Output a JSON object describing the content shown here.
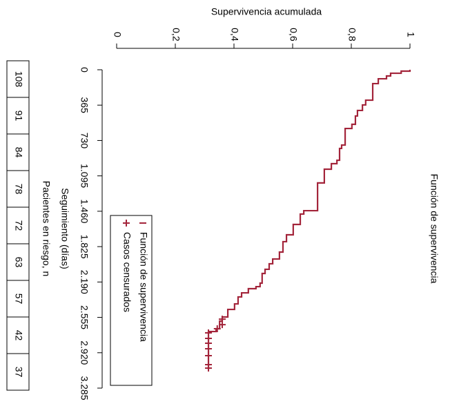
{
  "chart_data": {
    "type": "step",
    "title": "Función de supervivencia",
    "xlabel": "Seguimiento (días)",
    "ylabel": "Supervivencia acumulada",
    "risk_label": "Pacientes en riesgo, n",
    "xlim": [
      0,
      3285
    ],
    "xticks": [
      0,
      365,
      730,
      {
        "value": 1095,
        "label": "1.095"
      },
      {
        "value": 1460,
        "label": "1.460"
      },
      {
        "value": 1825,
        "label": "1.825"
      },
      {
        "value": 2190,
        "label": "2.190"
      },
      {
        "value": 2555,
        "label": "2.555"
      },
      {
        "value": 2920,
        "label": "2.920"
      },
      {
        "value": 3285,
        "label": "3.285"
      }
    ],
    "ylim": [
      0,
      1
    ],
    "yticks": [
      0,
      {
        "value": 0.2,
        "label": "0,2"
      },
      {
        "value": 0.4,
        "label": "0,4"
      },
      {
        "value": 0.6,
        "label": "0,6"
      },
      {
        "value": 0.8,
        "label": "0,8"
      },
      1
    ],
    "series": [
      {
        "name": "Función de supervivencia",
        "color": "#a3243a",
        "x": [
          0,
          14,
          36,
          64,
          93,
          143,
          314,
          363,
          420,
          477,
          563,
          606,
          777,
          812,
          934,
          969,
          1026,
          1168,
          1454,
          1489,
          1596,
          1703,
          1774,
          1881,
          1953,
          2002,
          2059,
          2102,
          2202,
          2238,
          2259,
          2302,
          2344,
          2416,
          2473,
          2551,
          2594,
          2672,
          2701,
          3093
        ],
        "values": [
          1.0,
          0.97,
          0.934,
          0.92,
          0.892,
          0.873,
          0.849,
          0.838,
          0.821,
          0.814,
          0.802,
          0.779,
          0.767,
          0.76,
          0.751,
          0.732,
          0.708,
          0.685,
          0.638,
          0.626,
          0.602,
          0.579,
          0.567,
          0.555,
          0.532,
          0.52,
          0.506,
          0.496,
          0.489,
          0.475,
          0.449,
          0.426,
          0.414,
          0.402,
          0.379,
          0.36,
          0.351,
          0.339,
          0.313,
          0.313
        ]
      },
      {
        "name": "Casos censurados",
        "color": "#a3243a",
        "x": [
          2573,
          2630,
          2672,
          2715,
          2772,
          2822,
          2879,
          2950,
          3043,
          3078
        ],
        "values": [
          0.36,
          0.36,
          0.343,
          0.313,
          0.313,
          0.313,
          0.313,
          0.313,
          0.313,
          0.313
        ]
      }
    ],
    "risk_table": [
      108,
      91,
      84,
      78,
      72,
      63,
      57,
      42,
      37
    ]
  }
}
